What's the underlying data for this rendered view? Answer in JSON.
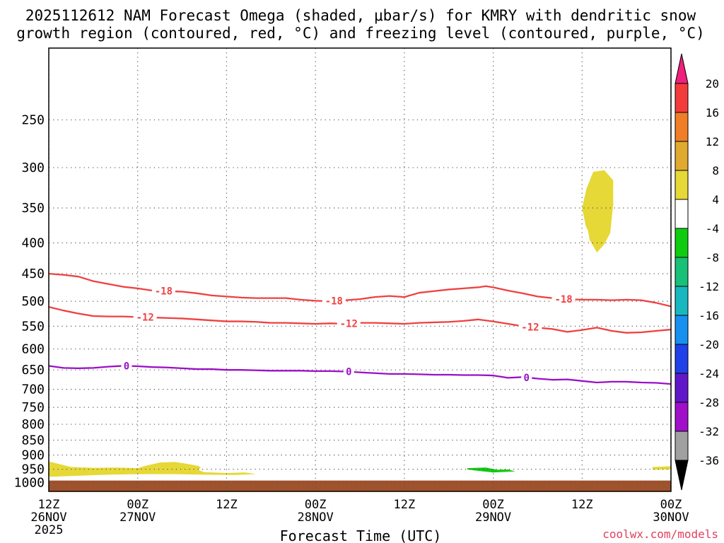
{
  "chart_data": {
    "type": "heatmap",
    "title_line1": "2025112612 NAM Forecast Omega (shaded, μbar/s) for KMRY with dendritic snow",
    "title_line2": "growth region (contoured, red, °C) and freezing level (contoured, purple, °C)",
    "xlabel": "Forecast Time (UTC)",
    "credit": "coolwx.com/models",
    "x_range_hours": [
      0,
      84
    ],
    "x_ticks": [
      {
        "hour": 0,
        "line1": "12Z",
        "line2": "26NOV",
        "line3": "2025"
      },
      {
        "hour": 12,
        "line1": "00Z",
        "line2": "27NOV",
        "line3": ""
      },
      {
        "hour": 24,
        "line1": "12Z",
        "line2": "",
        "line3": ""
      },
      {
        "hour": 36,
        "line1": "00Z",
        "line2": "28NOV",
        "line3": ""
      },
      {
        "hour": 48,
        "line1": "12Z",
        "line2": "",
        "line3": ""
      },
      {
        "hour": 60,
        "line1": "00Z",
        "line2": "29NOV",
        "line3": ""
      },
      {
        "hour": 72,
        "line1": "12Z",
        "line2": "",
        "line3": ""
      },
      {
        "hour": 84,
        "line1": "00Z",
        "line2": "30NOV",
        "line3": ""
      }
    ],
    "y_axis": {
      "scale": "log-pressure",
      "range_hpa": [
        1034,
        190
      ]
    },
    "y_ticks": [
      250,
      300,
      350,
      400,
      450,
      500,
      550,
      600,
      650,
      700,
      750,
      800,
      850,
      900,
      950,
      1000
    ],
    "colorbar": {
      "labels": [
        "20",
        "16",
        "12",
        "8",
        "4",
        "-4",
        "-8",
        "-12",
        "-16",
        "-20",
        "-24",
        "-28",
        "-32",
        "-36"
      ],
      "colors": [
        "#f0207c",
        "#f23c3c",
        "#f07e28",
        "#e0aa30",
        "#e6d836",
        "#ffffff",
        "#10cc10",
        "#18c078",
        "#18b8c0",
        "#1890f0",
        "#2040e8",
        "#6018c8",
        "#a010c8",
        "#a0a0a0",
        "#000000"
      ]
    },
    "contours": [
      {
        "name": "dgz-top",
        "value": -18,
        "label": "-18",
        "color": "#f04040",
        "points": [
          [
            0,
            450
          ],
          [
            2,
            452
          ],
          [
            4,
            455
          ],
          [
            6,
            463
          ],
          [
            8,
            468
          ],
          [
            10,
            473
          ],
          [
            12,
            476
          ],
          [
            14,
            480
          ],
          [
            16,
            481
          ],
          [
            18,
            482
          ],
          [
            20,
            485
          ],
          [
            22,
            489
          ],
          [
            24,
            491
          ],
          [
            26,
            493
          ],
          [
            28,
            494
          ],
          [
            30,
            494
          ],
          [
            32,
            494
          ],
          [
            34,
            497
          ],
          [
            36,
            499
          ],
          [
            38,
            500
          ],
          [
            40,
            498
          ],
          [
            42,
            496
          ],
          [
            44,
            492
          ],
          [
            46,
            490
          ],
          [
            48,
            492
          ],
          [
            50,
            484
          ],
          [
            52,
            481
          ],
          [
            54,
            478
          ],
          [
            56,
            476
          ],
          [
            58,
            474
          ],
          [
            59,
            472
          ],
          [
            60,
            474
          ],
          [
            62,
            480
          ],
          [
            64,
            485
          ],
          [
            66,
            491
          ],
          [
            68,
            494
          ],
          [
            70,
            496
          ],
          [
            72,
            497
          ],
          [
            74,
            497
          ],
          [
            76,
            498
          ],
          [
            78,
            497
          ],
          [
            80,
            498
          ],
          [
            82,
            503
          ],
          [
            84,
            510
          ]
        ],
        "label_hours": [
          15.5,
          38.5,
          69.5
        ]
      },
      {
        "name": "dgz-bottom",
        "value": -12,
        "label": "-12",
        "color": "#f04040",
        "points": [
          [
            0,
            511
          ],
          [
            2,
            518
          ],
          [
            4,
            524
          ],
          [
            6,
            529
          ],
          [
            8,
            530
          ],
          [
            10,
            530
          ],
          [
            12,
            531
          ],
          [
            14,
            532
          ],
          [
            16,
            533
          ],
          [
            18,
            534
          ],
          [
            20,
            536
          ],
          [
            22,
            538
          ],
          [
            24,
            540
          ],
          [
            26,
            540
          ],
          [
            28,
            541
          ],
          [
            30,
            543
          ],
          [
            32,
            543
          ],
          [
            34,
            544
          ],
          [
            36,
            545
          ],
          [
            38,
            544
          ],
          [
            40,
            545
          ],
          [
            42,
            543
          ],
          [
            44,
            543
          ],
          [
            46,
            544
          ],
          [
            48,
            545
          ],
          [
            50,
            543
          ],
          [
            52,
            542
          ],
          [
            54,
            541
          ],
          [
            56,
            539
          ],
          [
            58,
            536
          ],
          [
            60,
            540
          ],
          [
            62,
            545
          ],
          [
            64,
            550
          ],
          [
            66,
            553
          ],
          [
            68,
            556
          ],
          [
            70,
            562
          ],
          [
            72,
            558
          ],
          [
            74,
            553
          ],
          [
            76,
            560
          ],
          [
            78,
            564
          ],
          [
            80,
            563
          ],
          [
            82,
            560
          ],
          [
            84,
            557
          ]
        ],
        "label_hours": [
          13,
          40.5,
          65
        ]
      },
      {
        "name": "freezing-level",
        "value": 0,
        "label": "0",
        "color": "#9a10c8",
        "points": [
          [
            0,
            640
          ],
          [
            2,
            645
          ],
          [
            4,
            646
          ],
          [
            6,
            645
          ],
          [
            8,
            642
          ],
          [
            10,
            640
          ],
          [
            12,
            641
          ],
          [
            14,
            643
          ],
          [
            16,
            644
          ],
          [
            18,
            646
          ],
          [
            20,
            648
          ],
          [
            22,
            648
          ],
          [
            24,
            650
          ],
          [
            26,
            650
          ],
          [
            28,
            651
          ],
          [
            30,
            652
          ],
          [
            32,
            652
          ],
          [
            34,
            652
          ],
          [
            36,
            653
          ],
          [
            38,
            653
          ],
          [
            40,
            654
          ],
          [
            42,
            656
          ],
          [
            44,
            658
          ],
          [
            46,
            660
          ],
          [
            48,
            660
          ],
          [
            50,
            661
          ],
          [
            52,
            662
          ],
          [
            54,
            662
          ],
          [
            56,
            663
          ],
          [
            58,
            663
          ],
          [
            60,
            664
          ],
          [
            62,
            670
          ],
          [
            64,
            668
          ],
          [
            66,
            672
          ],
          [
            68,
            675
          ],
          [
            70,
            674
          ],
          [
            72,
            678
          ],
          [
            74,
            682
          ],
          [
            76,
            680
          ],
          [
            78,
            680
          ],
          [
            80,
            682
          ],
          [
            82,
            683
          ],
          [
            84,
            686
          ]
        ],
        "label_hours": [
          10.5,
          40.5,
          64.5
        ]
      }
    ],
    "shaded_regions": [
      {
        "name": "omega-4-8-upper",
        "range": "4 to 8",
        "color": "#e6d836",
        "points": [
          [
            72,
            350
          ],
          [
            72.6,
            325
          ],
          [
            73.5,
            305
          ],
          [
            75,
            303
          ],
          [
            76.2,
            315
          ],
          [
            76.2,
            345
          ],
          [
            75.8,
            385
          ],
          [
            75,
            402
          ],
          [
            74,
            415
          ],
          [
            73,
            395
          ],
          [
            72.8,
            382
          ],
          [
            72.5,
            375
          ]
        ]
      },
      {
        "name": "omega-4-8-lower-left",
        "range": "4 to 8",
        "color": "#e6d836",
        "points": [
          [
            0,
            922
          ],
          [
            3,
            942
          ],
          [
            6,
            945
          ],
          [
            9,
            944
          ],
          [
            12,
            946
          ],
          [
            13,
            938
          ],
          [
            15,
            926
          ],
          [
            17,
            924
          ],
          [
            19,
            932
          ],
          [
            20.2,
            938
          ],
          [
            20.5,
            944
          ],
          [
            20.2,
            953
          ],
          [
            21,
            961
          ],
          [
            24,
            964
          ],
          [
            26.5,
            962
          ],
          [
            28,
            968
          ],
          [
            25,
            971
          ],
          [
            21,
            970
          ],
          [
            17,
            968
          ],
          [
            12,
            968
          ],
          [
            8,
            970
          ],
          [
            4,
            974
          ],
          [
            0,
            978
          ]
        ]
      },
      {
        "name": "omega-4-8-lower-right",
        "range": "4 to 8",
        "color": "#e6d836",
        "points": [
          [
            81.5,
            942
          ],
          [
            84,
            939
          ],
          [
            84,
            951
          ],
          [
            81.5,
            952
          ]
        ]
      },
      {
        "name": "omega-minus4-minus8",
        "range": "-4 to -8",
        "color": "#10cc10",
        "points": [
          [
            56.5,
            946
          ],
          [
            59,
            944
          ],
          [
            60.5,
            952
          ],
          [
            62,
            951
          ],
          [
            63,
            958
          ],
          [
            60,
            962
          ],
          [
            58,
            956
          ],
          [
            56.5,
            951
          ]
        ]
      }
    ],
    "ground": {
      "name": "terrain",
      "color": "#a0522d",
      "top_hpa": 992
    }
  }
}
